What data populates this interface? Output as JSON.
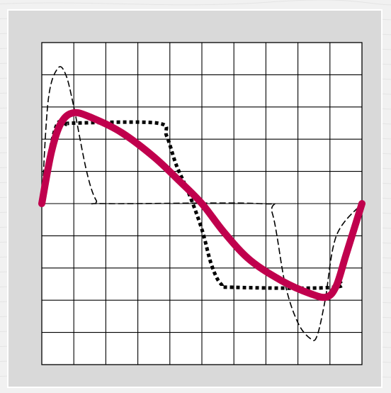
{
  "colors": {
    "page_background": "#f1f1f1",
    "panel_background": "#d9d9d9",
    "panel_border": "#ffffff",
    "plot_background": "#ffffff",
    "grid": "#000000",
    "highlight_series": "#c0004d",
    "reference_series": "#000000"
  },
  "chart_data": {
    "type": "line",
    "title": "",
    "xlabel": "",
    "ylabel": "",
    "xlim": [
      0,
      10
    ],
    "ylim": [
      -5,
      5
    ],
    "x_tick_labels": [],
    "y_tick_labels": [],
    "grid": true,
    "grid_divisions": {
      "x": 10,
      "y": 10
    },
    "legend": "none",
    "series": [
      {
        "style": "dashed-thin",
        "color": "#000000",
        "points": [
          [
            0,
            0
          ],
          [
            0.2,
            3.2
          ],
          [
            0.5,
            4.2
          ],
          [
            0.75,
            4.0
          ],
          [
            1.0,
            3.0
          ],
          [
            1.4,
            1.0
          ],
          [
            1.7,
            0.1
          ],
          [
            2.0,
            0
          ],
          [
            6.8,
            0
          ],
          [
            7.2,
            -0.3
          ],
          [
            7.6,
            -2.5
          ],
          [
            8.0,
            -3.7
          ],
          [
            8.4,
            -4.2
          ],
          [
            8.6,
            -4.1
          ],
          [
            8.85,
            -3.0
          ],
          [
            9.2,
            -1.0
          ],
          [
            10,
            0
          ]
        ]
      },
      {
        "style": "dotted-heavy",
        "color": "#000000",
        "points": [
          [
            0,
            0
          ],
          [
            0.25,
            1.6
          ],
          [
            0.5,
            2.5
          ],
          [
            0.8,
            2.45
          ],
          [
            1.0,
            2.5
          ],
          [
            3.6,
            2.5
          ],
          [
            3.9,
            2.1
          ],
          [
            4.2,
            1.2
          ],
          [
            4.6,
            0.3
          ],
          [
            5.0,
            -0.8
          ],
          [
            5.3,
            -1.9
          ],
          [
            5.6,
            -2.5
          ],
          [
            6.0,
            -2.6
          ],
          [
            9.1,
            -2.6
          ],
          [
            9.3,
            -2.3
          ],
          [
            9.6,
            -1.4
          ],
          [
            10,
            0
          ]
        ]
      },
      {
        "style": "solid-thick",
        "color": "#c0004d",
        "points": [
          [
            0,
            0
          ],
          [
            0.3,
            1.6
          ],
          [
            0.6,
            2.5
          ],
          [
            1.0,
            2.82
          ],
          [
            1.6,
            2.65
          ],
          [
            2.5,
            2.2
          ],
          [
            3.5,
            1.45
          ],
          [
            4.3,
            0.7
          ],
          [
            5.0,
            0
          ],
          [
            5.7,
            -0.9
          ],
          [
            6.5,
            -1.75
          ],
          [
            7.5,
            -2.4
          ],
          [
            8.4,
            -2.8
          ],
          [
            8.9,
            -2.9
          ],
          [
            9.2,
            -2.55
          ],
          [
            9.5,
            -1.6
          ],
          [
            10,
            0
          ]
        ]
      }
    ]
  }
}
